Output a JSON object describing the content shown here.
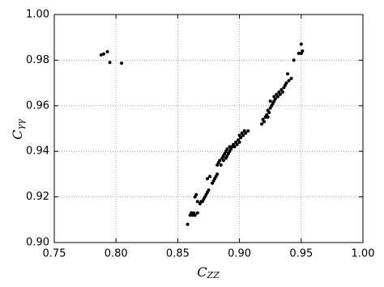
{
  "chart_data": {
    "type": "scatter",
    "xlabel": {
      "text": "C",
      "subscript": "ZZ"
    },
    "ylabel": {
      "text": "C",
      "subscript": "γγ"
    },
    "xlim": [
      0.75,
      1.0
    ],
    "ylim": [
      0.9,
      1.0
    ],
    "xticks": [
      0.75,
      {
        "value": 0.8,
        "label": "0.80"
      },
      0.85,
      {
        "value": 0.9,
        "label": "0.90"
      },
      0.95,
      {
        "value": 1.0,
        "label": "1.00"
      }
    ],
    "yticks": [
      {
        "value": 0.9,
        "label": "0.90"
      },
      0.92,
      0.94,
      0.96,
      0.98,
      {
        "value": 1.0,
        "label": "1.00"
      }
    ],
    "grid": true,
    "color": "#000000",
    "x": [
      0.788,
      0.79,
      0.793,
      0.795,
      0.8045,
      0.858,
      0.86,
      0.861,
      0.862,
      0.863,
      0.864,
      0.864,
      0.865,
      0.866,
      0.866,
      0.868,
      0.869,
      0.87,
      0.871,
      0.872,
      0.873,
      0.874,
      0.875,
      0.874,
      0.876,
      0.878,
      0.879,
      0.88,
      0.881,
      0.882,
      0.882,
      0.883,
      0.884,
      0.885,
      0.886,
      0.887,
      0.887,
      0.888,
      0.889,
      0.889,
      0.89,
      0.89,
      0.891,
      0.892,
      0.892,
      0.893,
      0.894,
      0.895,
      0.896,
      0.897,
      0.898,
      0.899,
      0.9,
      0.9,
      0.901,
      0.902,
      0.903,
      0.904,
      0.905,
      0.907,
      0.918,
      0.919,
      0.92,
      0.921,
      0.922,
      0.923,
      0.923,
      0.924,
      0.925,
      0.925,
      0.926,
      0.927,
      0.928,
      0.928,
      0.929,
      0.93,
      0.931,
      0.932,
      0.933,
      0.934,
      0.935,
      0.936,
      0.937,
      0.938,
      0.939,
      0.94,
      0.942,
      0.944,
      0.948,
      0.95,
      0.95,
      0.951
    ],
    "values": [
      0.9823,
      0.9827,
      0.9837,
      0.979,
      0.9787,
      0.908,
      0.912,
      0.913,
      0.912,
      0.913,
      0.912,
      0.92,
      0.921,
      0.913,
      0.918,
      0.917,
      0.918,
      0.918,
      0.919,
      0.92,
      0.921,
      0.922,
      0.923,
      0.928,
      0.929,
      0.926,
      0.927,
      0.928,
      0.929,
      0.93,
      0.934,
      0.935,
      0.936,
      0.934,
      0.937,
      0.936,
      0.938,
      0.939,
      0.937,
      0.94,
      0.938,
      0.941,
      0.939,
      0.94,
      0.942,
      0.941,
      0.942,
      0.943,
      0.942,
      0.944,
      0.943,
      0.945,
      0.944,
      0.947,
      0.946,
      0.948,
      0.947,
      0.949,
      0.948,
      0.949,
      0.952,
      0.954,
      0.953,
      0.955,
      0.956,
      0.955,
      0.958,
      0.957,
      0.959,
      0.962,
      0.96,
      0.961,
      0.962,
      0.964,
      0.963,
      0.965,
      0.964,
      0.966,
      0.965,
      0.967,
      0.966,
      0.968,
      0.969,
      0.97,
      0.974,
      0.971,
      0.972,
      0.98,
      0.983,
      0.983,
      0.987,
      0.984
    ]
  }
}
